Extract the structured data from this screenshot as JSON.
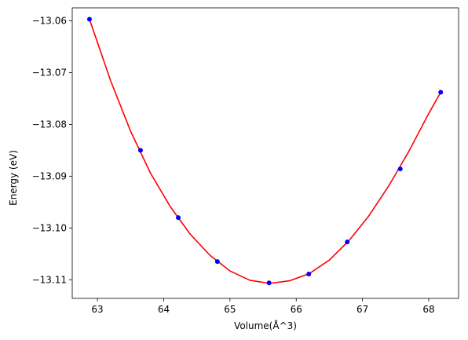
{
  "chart_data": {
    "type": "scatter",
    "xlabel": "Volume(Å^3)",
    "ylabel": "Energy (eV)",
    "xlim": [
      62.62,
      68.45
    ],
    "ylim": [
      -13.1136,
      -13.0575
    ],
    "xticks": [
      63,
      64,
      65,
      66,
      67,
      68
    ],
    "xtick_labels": [
      "63",
      "64",
      "65",
      "66",
      "67",
      "68"
    ],
    "yticks": [
      -13.06,
      -13.07,
      -13.08,
      -13.09,
      -13.1,
      -13.11
    ],
    "ytick_labels": [
      "−13.06",
      "−13.07",
      "−13.08",
      "−13.09",
      "−13.10",
      "−13.11"
    ],
    "grid": false,
    "series": [
      {
        "kind": "points",
        "color": "#0000ff",
        "x": [
          62.88,
          63.65,
          64.22,
          64.81,
          65.59,
          66.19,
          66.77,
          67.57,
          68.18
        ],
        "y": [
          -13.0597,
          -13.085,
          -13.098,
          -13.1065,
          -13.1106,
          -13.1089,
          -13.1027,
          -13.0886,
          -13.0738
        ]
      },
      {
        "kind": "fit-curve",
        "color": "#ff0000",
        "x": [
          62.88,
          63.2,
          63.5,
          63.8,
          64.1,
          64.4,
          64.7,
          65.0,
          65.3,
          65.6,
          65.9,
          66.2,
          66.5,
          66.8,
          67.1,
          67.4,
          67.7,
          68.0,
          68.18
        ],
        "y": [
          -13.0597,
          -13.0716,
          -13.0813,
          -13.0894,
          -13.0959,
          -13.1012,
          -13.1053,
          -13.1083,
          -13.1101,
          -13.1107,
          -13.1102,
          -13.1088,
          -13.1062,
          -13.1024,
          -13.0976,
          -13.0918,
          -13.0852,
          -13.0779,
          -13.0738
        ]
      }
    ]
  }
}
